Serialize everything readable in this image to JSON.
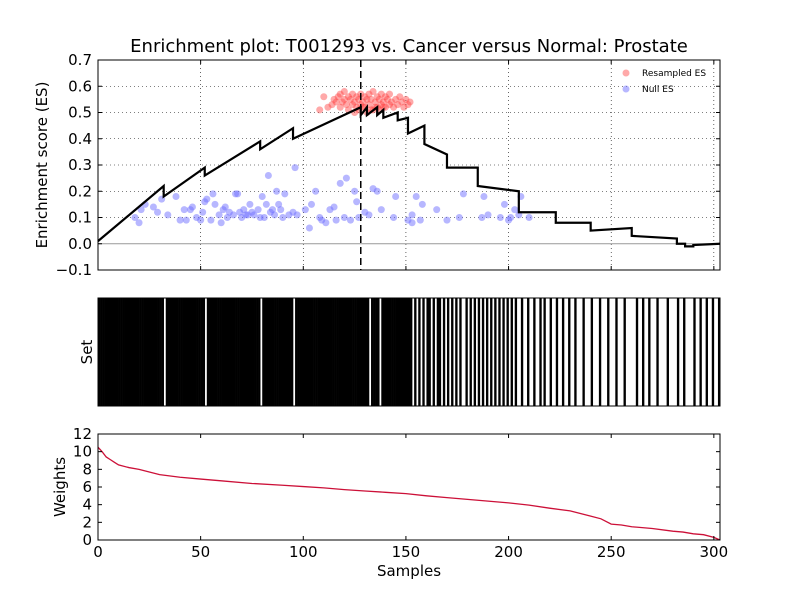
{
  "chart_data": [
    {
      "type": "line",
      "title": "Enrichment plot: T001293 vs. Cancer versus Normal: Prostate",
      "xlabel": "",
      "ylabel": "Enrichment score (ES)",
      "xlim": [
        0,
        303
      ],
      "ylim": [
        -0.1,
        0.7
      ],
      "yticks": [
        "0.7",
        "0.6",
        "0.5",
        "0.4",
        "0.3",
        "0.2",
        "0.1",
        "0.0",
        "−0.1"
      ],
      "ytick_values": [
        0.7,
        0.6,
        0.5,
        0.4,
        0.3,
        0.2,
        0.1,
        0.0,
        -0.1
      ],
      "grid": true,
      "legend_position": "top-right",
      "max_es_x": 128,
      "series": [
        {
          "name": "",
          "x": [
            0,
            32,
            32,
            52,
            52,
            79,
            79,
            95,
            95,
            128,
            128,
            131,
            131,
            136,
            136,
            139,
            139,
            146,
            146,
            151,
            151,
            159,
            159,
            170,
            170,
            185,
            185,
            205,
            205,
            223,
            223,
            240,
            240,
            260,
            260,
            282,
            282,
            286,
            286,
            290,
            290,
            303
          ],
          "values": [
            0.01,
            0.22,
            0.18,
            0.29,
            0.26,
            0.39,
            0.36,
            0.44,
            0.4,
            0.52,
            0.49,
            0.52,
            0.49,
            0.52,
            0.49,
            0.51,
            0.48,
            0.5,
            0.47,
            0.48,
            0.42,
            0.45,
            0.38,
            0.34,
            0.29,
            0.29,
            0.22,
            0.2,
            0.12,
            0.12,
            0.08,
            0.08,
            0.05,
            0.06,
            0.03,
            0.02,
            0.0,
            0.0,
            -0.01,
            -0.01,
            -0.005,
            0.0
          ]
        },
        {
          "name": "Resampled ES",
          "color": "#ff4040",
          "x": [
            108,
            110,
            112,
            114,
            115,
            116,
            117,
            118,
            118,
            119,
            120,
            120,
            121,
            122,
            122,
            123,
            124,
            124,
            125,
            126,
            126,
            127,
            128,
            128,
            129,
            130,
            130,
            131,
            132,
            132,
            133,
            134,
            134,
            135,
            136,
            136,
            137,
            138,
            138,
            139,
            140,
            140,
            141,
            142,
            142,
            143,
            144,
            145,
            146,
            147,
            148,
            149,
            150,
            151,
            152,
            125,
            127,
            129,
            131,
            133,
            135,
            137,
            139
          ],
          "values": [
            0.51,
            0.56,
            0.52,
            0.53,
            0.55,
            0.54,
            0.56,
            0.52,
            0.57,
            0.54,
            0.55,
            0.58,
            0.53,
            0.56,
            0.51,
            0.55,
            0.57,
            0.53,
            0.54,
            0.56,
            0.52,
            0.55,
            0.53,
            0.57,
            0.54,
            0.56,
            0.52,
            0.55,
            0.57,
            0.53,
            0.55,
            0.58,
            0.51,
            0.54,
            0.56,
            0.52,
            0.55,
            0.53,
            0.57,
            0.54,
            0.56,
            0.52,
            0.55,
            0.53,
            0.57,
            0.54,
            0.52,
            0.55,
            0.53,
            0.56,
            0.54,
            0.52,
            0.55,
            0.53,
            0.54,
            0.5,
            0.51,
            0.52,
            0.5,
            0.51,
            0.52,
            0.51,
            0.52
          ]
        },
        {
          "name": "Null ES",
          "color": "#7070ff",
          "x": [
            18,
            20,
            21,
            23,
            27,
            29,
            31,
            34,
            38,
            40,
            42,
            43,
            45,
            46,
            48,
            50,
            51,
            52,
            53,
            55,
            56,
            57,
            59,
            60,
            61,
            62,
            63,
            64,
            66,
            67,
            68,
            69,
            70,
            71,
            72,
            73,
            74,
            75,
            76,
            78,
            79,
            80,
            81,
            82,
            83,
            84,
            85,
            86,
            87,
            88,
            89,
            90,
            91,
            93,
            95,
            96,
            97,
            101,
            103,
            104,
            106,
            108,
            109,
            111,
            113,
            115,
            116,
            118,
            120,
            121,
            123,
            125,
            126,
            127,
            130,
            132,
            134,
            136,
            138,
            144,
            145,
            151,
            153,
            153,
            155,
            157,
            158,
            165,
            170,
            176,
            178,
            187,
            188,
            190,
            196,
            198,
            200,
            201,
            203,
            205,
            206,
            210
          ],
          "values": [
            0.1,
            0.08,
            0.13,
            0.15,
            0.14,
            0.12,
            0.17,
            0.11,
            0.18,
            0.09,
            0.13,
            0.09,
            0.13,
            0.14,
            0.1,
            0.09,
            0.12,
            0.16,
            0.17,
            0.09,
            0.19,
            0.15,
            0.11,
            0.08,
            0.13,
            0.14,
            0.1,
            0.12,
            0.11,
            0.19,
            0.19,
            0.12,
            0.1,
            0.13,
            0.11,
            0.11,
            0.15,
            0.12,
            0.11,
            0.13,
            0.1,
            0.18,
            0.1,
            0.15,
            0.26,
            0.12,
            0.13,
            0.11,
            0.2,
            0.15,
            0.13,
            0.1,
            0.19,
            0.11,
            0.12,
            0.29,
            0.11,
            0.13,
            0.06,
            0.15,
            0.2,
            0.1,
            0.09,
            0.08,
            0.13,
            0.14,
            0.09,
            0.23,
            0.1,
            0.25,
            0.09,
            0.2,
            0.16,
            0.1,
            0.12,
            0.11,
            0.21,
            0.2,
            0.13,
            0.1,
            0.18,
            0.09,
            0.11,
            0.08,
            0.18,
            0.09,
            0.15,
            0.13,
            0.09,
            0.1,
            0.19,
            0.1,
            0.18,
            0.11,
            0.1,
            0.15,
            0.09,
            0.1,
            0.13,
            0.11,
            0.18,
            0.1
          ]
        }
      ]
    },
    {
      "type": "barcode",
      "ylabel": "Set",
      "xlim": [
        0,
        303
      ],
      "hit_positions": [
        0,
        1,
        2,
        3,
        4,
        5,
        6,
        7,
        8,
        9,
        10,
        11,
        12,
        13,
        14,
        15,
        16,
        17,
        18,
        19,
        20,
        21,
        22,
        23,
        24,
        25,
        26,
        27,
        28,
        29,
        30,
        31,
        33,
        34,
        35,
        36,
        37,
        38,
        39,
        40,
        41,
        42,
        43,
        44,
        45,
        46,
        47,
        48,
        49,
        50,
        51,
        53,
        54,
        55,
        56,
        57,
        58,
        59,
        60,
        61,
        62,
        63,
        64,
        65,
        66,
        67,
        68,
        69,
        70,
        71,
        72,
        73,
        74,
        75,
        76,
        77,
        78,
        80,
        81,
        82,
        83,
        84,
        85,
        86,
        87,
        88,
        89,
        90,
        91,
        92,
        93,
        94,
        96,
        97,
        98,
        99,
        100,
        101,
        102,
        103,
        104,
        105,
        106,
        107,
        108,
        109,
        110,
        111,
        112,
        113,
        114,
        115,
        116,
        117,
        118,
        119,
        120,
        121,
        122,
        123,
        124,
        125,
        126,
        127,
        128,
        129,
        130,
        131,
        133,
        134,
        135,
        136,
        138,
        139,
        140,
        141,
        142,
        143,
        144,
        145,
        146,
        147,
        148,
        149,
        150,
        151,
        152,
        154,
        156,
        158,
        160,
        161,
        163,
        165,
        166,
        168,
        170,
        172,
        174,
        176,
        179,
        181,
        183,
        185,
        187,
        189,
        191,
        193,
        195,
        197,
        199,
        201,
        203,
        206,
        209,
        212,
        215,
        217,
        220,
        223,
        226,
        229,
        232,
        236,
        240,
        244,
        248,
        252,
        256,
        262,
        265,
        268,
        272,
        277,
        282,
        285,
        290,
        293,
        296,
        299,
        302
      ]
    },
    {
      "type": "line",
      "xlabel": "Samples",
      "ylabel": "Weights",
      "xlim": [
        0,
        303
      ],
      "ylim": [
        0,
        12
      ],
      "xticks": [
        "0",
        "50",
        "100",
        "150",
        "200",
        "250",
        "300"
      ],
      "xtick_values": [
        0,
        50,
        100,
        150,
        200,
        250,
        300
      ],
      "yticks": [
        "12",
        "10",
        "8",
        "6",
        "4",
        "2",
        "0"
      ],
      "ytick_values": [
        12,
        10,
        8,
        6,
        4,
        2,
        0
      ],
      "series": [
        {
          "name": "",
          "color": "#cc1038",
          "x": [
            0,
            2,
            4,
            6,
            8,
            10,
            15,
            20,
            30,
            40,
            50,
            60,
            75,
            90,
            100,
            110,
            120,
            130,
            140,
            150,
            160,
            170,
            180,
            190,
            200,
            210,
            220,
            230,
            240,
            245,
            250,
            255,
            260,
            270,
            280,
            285,
            290,
            295,
            300,
            302,
            303
          ],
          "values": [
            10.5,
            10.0,
            9.4,
            9.1,
            8.8,
            8.5,
            8.2,
            8.0,
            7.4,
            7.1,
            6.9,
            6.7,
            6.4,
            6.2,
            6.05,
            5.9,
            5.7,
            5.55,
            5.4,
            5.25,
            5.0,
            4.8,
            4.6,
            4.4,
            4.2,
            3.95,
            3.6,
            3.3,
            2.7,
            2.4,
            1.8,
            1.7,
            1.5,
            1.3,
            1.0,
            0.9,
            0.7,
            0.6,
            0.3,
            0.1,
            0.0
          ]
        }
      ]
    }
  ]
}
